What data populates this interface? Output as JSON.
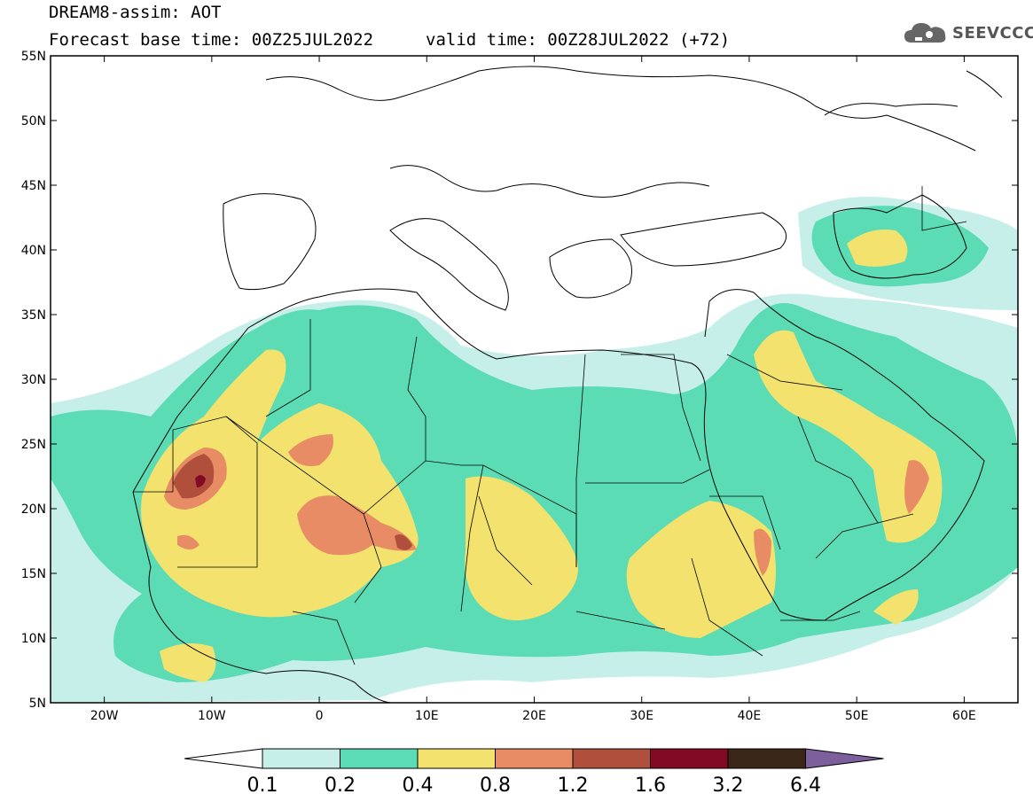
{
  "header": {
    "title": "DREAM8-assim: AOT",
    "base_time": "Forecast base time: 00Z25JUL2022",
    "valid_time": "valid time: 00Z28JUL2022 (+72)"
  },
  "logo": {
    "text": "SEEVCCC",
    "icon": "cloud-icon"
  },
  "map": {
    "lon_range": [
      -25,
      65
    ],
    "lat_range": [
      5,
      55
    ],
    "lat_ticks": [
      "55N",
      "50N",
      "45N",
      "40N",
      "35N",
      "30N",
      "25N",
      "20N",
      "15N",
      "10N",
      "5N"
    ],
    "lon_ticks": [
      "20W",
      "10W",
      "0",
      "10E",
      "20E",
      "30E",
      "40E",
      "50E",
      "60E"
    ]
  },
  "legend": {
    "values": [
      "0.1",
      "0.2",
      "0.4",
      "0.8",
      "1.2",
      "1.6",
      "3.2",
      "6.4"
    ],
    "colors": [
      "#c5efe8",
      "#5bdcb4",
      "#f3e26e",
      "#e78c64",
      "#b0503c",
      "#820a24",
      "#3a2618",
      "#7e5f9e"
    ]
  }
}
